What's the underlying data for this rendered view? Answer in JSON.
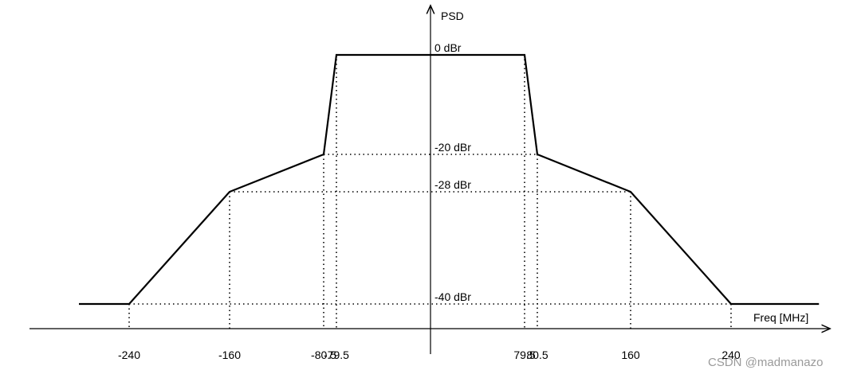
{
  "chart_data": {
    "type": "line",
    "y_label": "PSD",
    "x_label": "Freq [MHz]",
    "watermark": "CSDN @madmanazo",
    "x": [
      -280,
      -240,
      -160,
      -80.5,
      -79.5,
      79.5,
      80.5,
      160,
      240,
      310
    ],
    "series": [
      {
        "color": "#000000",
        "values": [
          -40,
          -40,
          -28,
          -20,
          0,
          0,
          -20,
          -28,
          -40,
          -40
        ]
      }
    ],
    "xticks": [
      -240,
      -160,
      -80.5,
      -79.5,
      79.5,
      80.5,
      160,
      240
    ],
    "yticks": [
      {
        "value": 0,
        "label": "0 dBr"
      },
      {
        "value": -20,
        "label": "-20 dBr"
      },
      {
        "value": -28,
        "label": "-28 dBr"
      },
      {
        "value": -40,
        "label": "-40 dBr"
      }
    ],
    "grid": true
  }
}
